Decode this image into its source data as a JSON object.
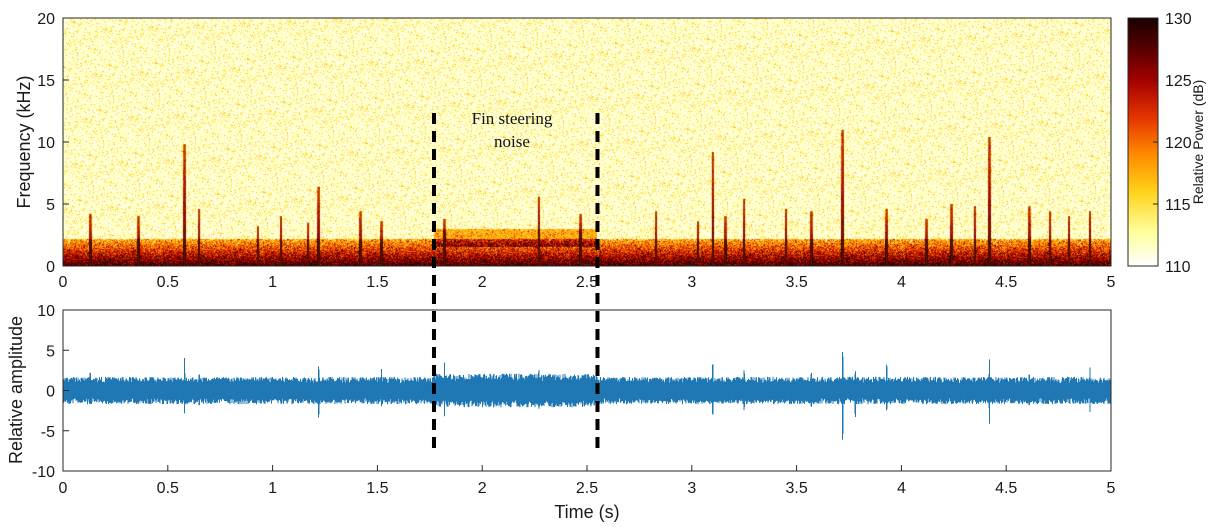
{
  "colors": {
    "waveform": "#1f77b4",
    "marker": "#000000",
    "colormap": [
      "#ffffff",
      "#ffff9a",
      "#ffd21a",
      "#ff8a00",
      "#e43400",
      "#a30000",
      "#4a0000",
      "#1a0000"
    ]
  },
  "chart_data": [
    {
      "type": "heatmap",
      "title": "",
      "xlabel": "",
      "ylabel": "Frequency (kHz)",
      "xlim": [
        0,
        5
      ],
      "ylim": [
        0,
        20
      ],
      "x_ticks": [
        "0",
        "0.5",
        "1",
        "1.5",
        "2",
        "2.5",
        "3",
        "3.5",
        "4",
        "4.5",
        "5"
      ],
      "y_ticks": [
        "0",
        "5",
        "10",
        "15",
        "20"
      ],
      "colorbar": {
        "label": "Relative Power (dB)",
        "range": [
          110,
          130
        ],
        "ticks": [
          "110",
          "115",
          "120",
          "125",
          "130"
        ]
      },
      "annotation": {
        "lines": [
          "Fin steering",
          "noise"
        ],
        "x_start": 1.77,
        "x_end": 2.55
      },
      "low_frequency_band_khz": [
        0,
        2.2
      ],
      "fin_noise_band_khz": [
        1.5,
        3.0
      ],
      "transients": [
        {
          "t": 0.13,
          "top_khz": 4.2
        },
        {
          "t": 0.36,
          "top_khz": 4.0
        },
        {
          "t": 0.58,
          "top_khz": 9.8
        },
        {
          "t": 0.65,
          "top_khz": 4.6
        },
        {
          "t": 0.93,
          "top_khz": 3.2
        },
        {
          "t": 1.04,
          "top_khz": 4.0
        },
        {
          "t": 1.17,
          "top_khz": 3.5
        },
        {
          "t": 1.22,
          "top_khz": 6.4
        },
        {
          "t": 1.42,
          "top_khz": 4.4
        },
        {
          "t": 1.52,
          "top_khz": 3.6
        },
        {
          "t": 1.82,
          "top_khz": 3.8
        },
        {
          "t": 2.27,
          "top_khz": 5.6
        },
        {
          "t": 2.47,
          "top_khz": 4.2
        },
        {
          "t": 2.83,
          "top_khz": 4.4
        },
        {
          "t": 3.03,
          "top_khz": 3.6
        },
        {
          "t": 3.1,
          "top_khz": 9.2
        },
        {
          "t": 3.16,
          "top_khz": 4.0
        },
        {
          "t": 3.25,
          "top_khz": 5.4
        },
        {
          "t": 3.45,
          "top_khz": 4.6
        },
        {
          "t": 3.57,
          "top_khz": 4.4
        },
        {
          "t": 3.72,
          "top_khz": 11.0
        },
        {
          "t": 3.93,
          "top_khz": 4.6
        },
        {
          "t": 4.12,
          "top_khz": 3.8
        },
        {
          "t": 4.24,
          "top_khz": 5.0
        },
        {
          "t": 4.35,
          "top_khz": 4.8
        },
        {
          "t": 4.42,
          "top_khz": 10.4
        },
        {
          "t": 4.61,
          "top_khz": 4.8
        },
        {
          "t": 4.71,
          "top_khz": 4.4
        },
        {
          "t": 4.8,
          "top_khz": 4.0
        },
        {
          "t": 4.9,
          "top_khz": 4.4
        }
      ]
    },
    {
      "type": "line",
      "title": "",
      "xlabel": "Time (s)",
      "ylabel": "Relative amplitude",
      "xlim": [
        0,
        5
      ],
      "ylim": [
        -10,
        10
      ],
      "x_ticks": [
        "0",
        "0.5",
        "1",
        "1.5",
        "2",
        "2.5",
        "3",
        "3.5",
        "4",
        "4.5",
        "5"
      ],
      "y_ticks": [
        "-10",
        "-5",
        "0",
        "5",
        "10"
      ],
      "baseline_envelope": 1.7,
      "fin_noise_envelope": 2.1,
      "spikes": [
        {
          "t": 0.13,
          "max": 3.1,
          "min": -2.4
        },
        {
          "t": 0.58,
          "max": 4.4,
          "min": -3.1
        },
        {
          "t": 0.65,
          "max": 2.8,
          "min": -2.6
        },
        {
          "t": 1.22,
          "max": 4.0,
          "min": -4.5
        },
        {
          "t": 1.52,
          "max": 3.0,
          "min": -2.2
        },
        {
          "t": 1.82,
          "max": 3.6,
          "min": -3.3
        },
        {
          "t": 2.27,
          "max": 3.4,
          "min": -3.0
        },
        {
          "t": 3.1,
          "max": 4.6,
          "min": -4.2
        },
        {
          "t": 3.25,
          "max": 3.3,
          "min": -3.2
        },
        {
          "t": 3.57,
          "max": 3.0,
          "min": -2.8
        },
        {
          "t": 3.72,
          "max": 6.4,
          "min": -8.2
        },
        {
          "t": 3.78,
          "max": 3.2,
          "min": -4.4
        },
        {
          "t": 3.93,
          "max": 4.4,
          "min": -3.4
        },
        {
          "t": 4.42,
          "max": 4.2,
          "min": -4.5
        },
        {
          "t": 4.61,
          "max": 2.8,
          "min": -2.6
        },
        {
          "t": 4.9,
          "max": 3.0,
          "min": -2.8
        }
      ]
    }
  ]
}
